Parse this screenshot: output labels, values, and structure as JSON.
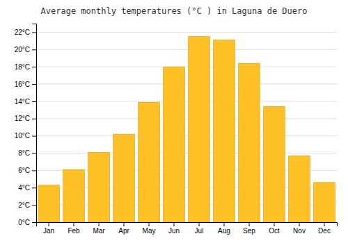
{
  "chart_data": {
    "type": "bar",
    "title": "Average monthly temperatures (°C ) in Laguna de Duero",
    "categories": [
      "Jan",
      "Feb",
      "Mar",
      "Apr",
      "May",
      "Jun",
      "Jul",
      "Aug",
      "Sep",
      "Oct",
      "Nov",
      "Dec"
    ],
    "values": [
      4.3,
      6.1,
      8.1,
      10.2,
      13.9,
      18.0,
      21.5,
      21.1,
      18.4,
      13.4,
      7.7,
      4.6
    ],
    "color": "#FFC125",
    "ylim": [
      0,
      23
    ],
    "yticks": [
      {
        "value": 0,
        "label": "0°C"
      },
      {
        "value": 2,
        "label": "2°C"
      },
      {
        "value": 4,
        "label": "4°C"
      },
      {
        "value": 6,
        "label": "6°C"
      },
      {
        "value": 8,
        "label": "8°C"
      },
      {
        "value": 10,
        "label": "10°C"
      },
      {
        "value": 12,
        "label": "12°C"
      },
      {
        "value": 14,
        "label": "14°C"
      },
      {
        "value": 16,
        "label": "16°C"
      },
      {
        "value": 18,
        "label": "18°C"
      },
      {
        "value": 20,
        "label": "20°C"
      },
      {
        "value": 22,
        "label": "22°C"
      }
    ],
    "grid": true
  }
}
